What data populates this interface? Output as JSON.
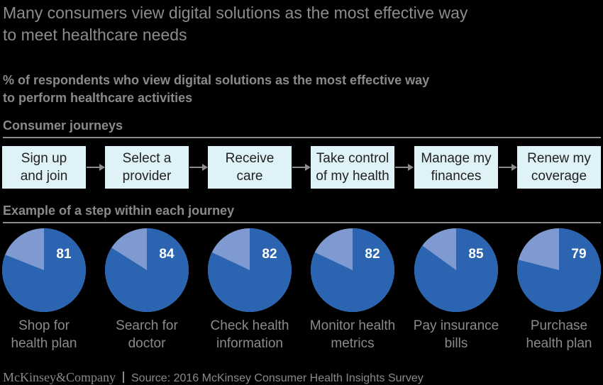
{
  "title": "Many consumers view digital solutions as the most effective way\nto meet healthcare needs",
  "subtitle": "% of respondents who view digital solutions as the most effective way\nto perform healthcare activities",
  "journeys_heading": "Consumer journeys",
  "steps_heading": "Example of a step within each journey",
  "journeys": [
    "Sign up\nand join",
    "Select a\nprovider",
    "Receive\ncare",
    "Take control\nof my health",
    "Manage my\nfinances",
    "Renew my\ncoverage"
  ],
  "chart_data": {
    "type": "pie",
    "title": "% of respondents who view digital solutions as the most effective way to perform healthcare activities",
    "categories": [
      "Shop for\nhealth plan",
      "Search for\ndoctor",
      "Check health\ninformation",
      "Monitor health\nmetrics",
      "Pay insurance\nbills",
      "Purchase\nhealth plan"
    ],
    "values": [
      81,
      84,
      82,
      82,
      85,
      79
    ],
    "colors": {
      "primary": "#2b64b0",
      "remainder": "#7f9ad0",
      "label": "#ffffff"
    }
  },
  "footer": {
    "brand": "McKinsey&Company",
    "source": "Source: 2016 McKinsey Consumer Health Insights Survey"
  }
}
